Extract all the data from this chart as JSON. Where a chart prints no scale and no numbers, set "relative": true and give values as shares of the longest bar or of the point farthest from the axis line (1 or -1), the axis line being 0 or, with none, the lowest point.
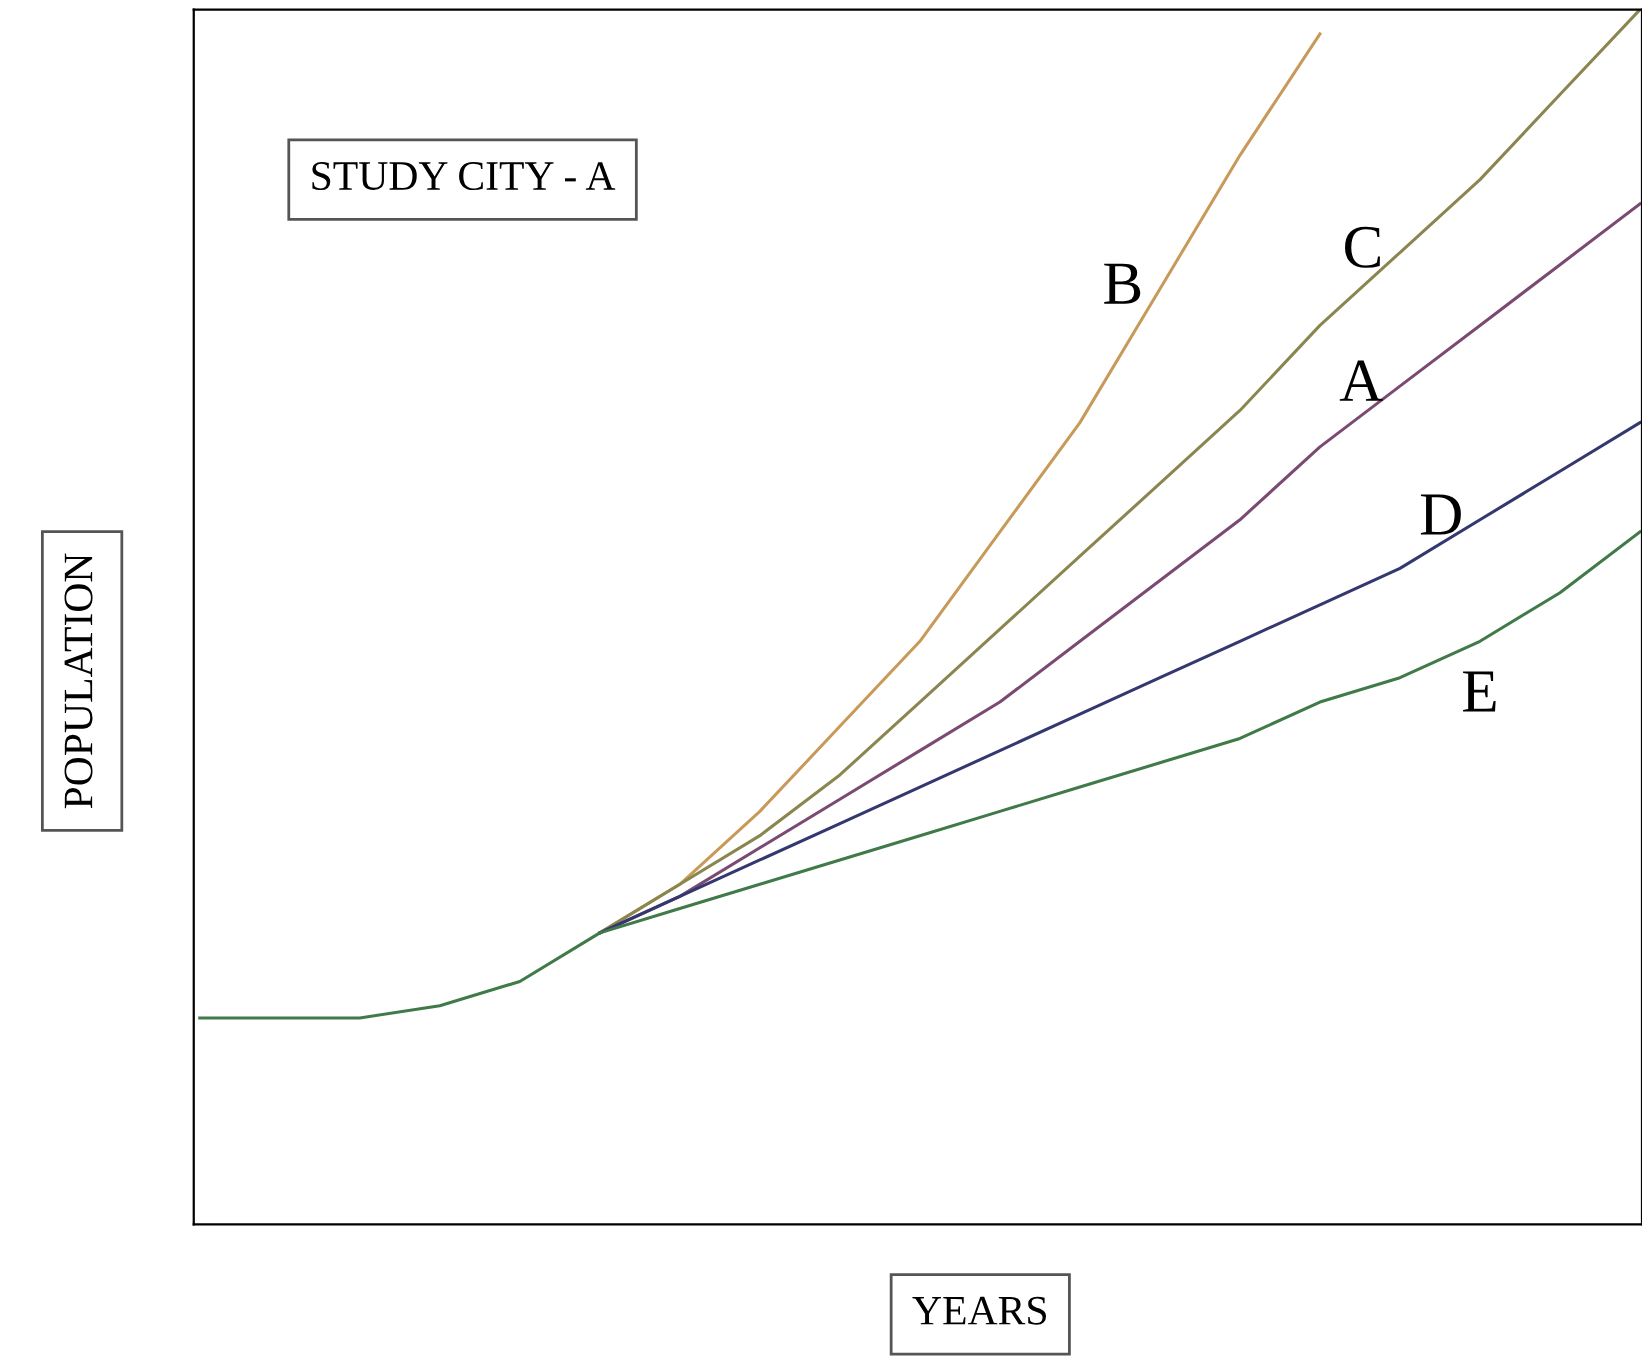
{
  "chart_data": {
    "type": "line",
    "relative": true,
    "title": "STUDY CITY - A",
    "xlabel": "YEARS",
    "ylabel": "POPULATION",
    "legend": false,
    "marker": "none",
    "line_style": "solid",
    "categories": [
      null,
      null,
      null,
      null,
      null,
      null,
      null,
      null,
      null,
      null,
      null,
      null,
      null,
      null,
      null,
      null,
      null,
      null,
      null
    ],
    "series": [
      {
        "name": "B",
        "color": "#c89a5a",
        "values": [
          null,
          null,
          null,
          null,
          null,
          0.24,
          0.28,
          0.34,
          0.41,
          0.48,
          0.57,
          0.66,
          0.77,
          0.88,
          0.98,
          null,
          null,
          null,
          null
        ]
      },
      {
        "name": "C",
        "color": "#8a8650",
        "values": [
          null,
          null,
          null,
          null,
          null,
          0.24,
          0.28,
          0.32,
          0.37,
          0.43,
          0.49,
          0.55,
          0.61,
          0.67,
          0.74,
          0.8,
          0.86,
          0.93,
          1.0
        ]
      },
      {
        "name": "A",
        "color": "#7a4a72",
        "values": [
          null,
          null,
          null,
          null,
          null,
          0.24,
          0.27,
          0.31,
          0.35,
          0.39,
          0.43,
          0.48,
          0.53,
          0.58,
          0.64,
          0.69,
          0.74,
          0.79,
          0.84
        ]
      },
      {
        "name": "D",
        "color": "#34386e",
        "values": [
          null,
          null,
          null,
          null,
          null,
          0.24,
          0.27,
          0.3,
          0.33,
          0.36,
          0.39,
          0.42,
          0.45,
          0.48,
          0.51,
          0.54,
          0.58,
          0.62,
          0.66
        ]
      },
      {
        "name": "E",
        "color": "#3f7a48",
        "values": [
          0.17,
          0.17,
          0.17,
          0.18,
          0.2,
          0.24,
          0.26,
          0.28,
          0.3,
          0.32,
          0.34,
          0.36,
          0.38,
          0.4,
          0.43,
          0.45,
          0.48,
          0.52,
          0.57
        ]
      }
    ]
  }
}
